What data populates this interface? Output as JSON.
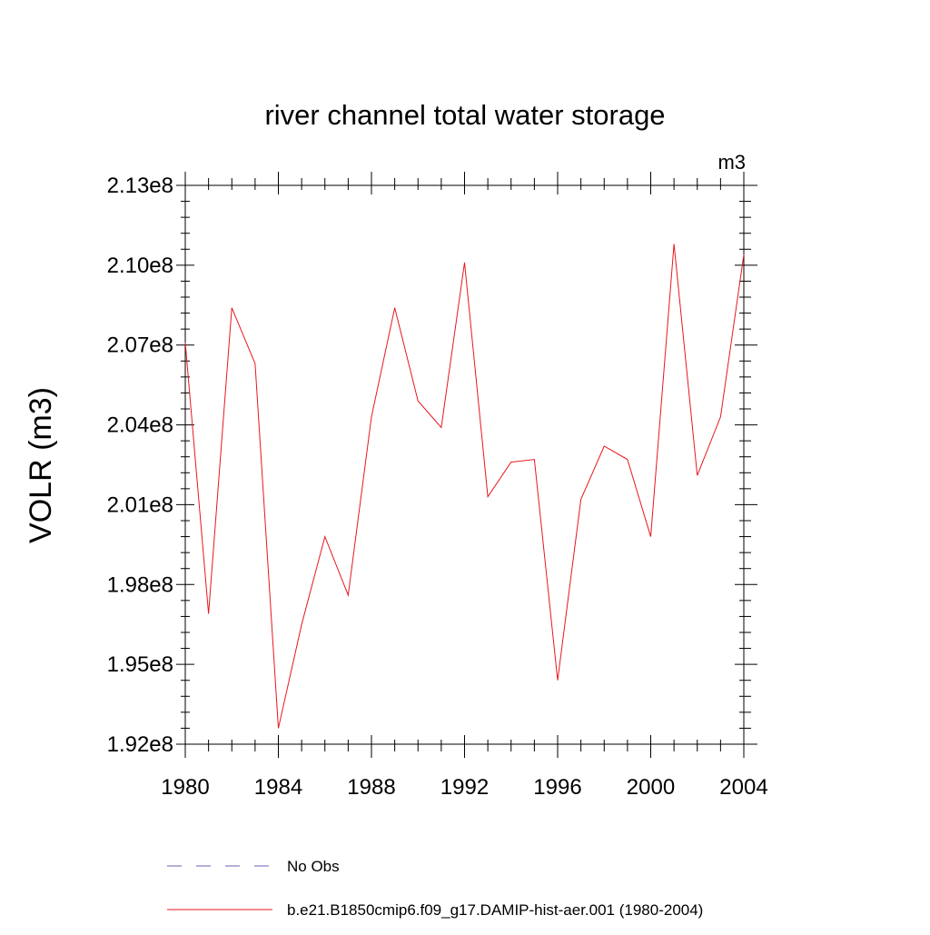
{
  "chart_data": {
    "type": "line",
    "title": "river channel total water storage",
    "units_label": "m3",
    "ylabel": "VOLR  (m3)",
    "xlabel": "",
    "xlim": [
      1980,
      2004
    ],
    "ylim": [
      192000000.0,
      213000000.0
    ],
    "x_ticks": [
      1980,
      1984,
      1988,
      1992,
      1996,
      2000,
      2004
    ],
    "x_tick_labels": [
      "1980",
      "1984",
      "1988",
      "1992",
      "1996",
      "2000",
      "2004"
    ],
    "y_ticks": [
      192000000.0,
      195000000.0,
      198000000.0,
      201000000.0,
      204000000.0,
      207000000.0,
      210000000.0,
      213000000.0
    ],
    "y_tick_labels": [
      "1.92e8",
      "1.95e8",
      "1.98e8",
      "2.01e8",
      "2.04e8",
      "2.07e8",
      "2.10e8",
      "2.13e8"
    ],
    "grid": false,
    "legend_position": "bottom",
    "series": [
      {
        "name": "No Obs",
        "color": "#6b5fb5",
        "dash": "dashed",
        "x": [],
        "values": []
      },
      {
        "name": "b.e21.B1850cmip6.f09_g17.DAMIP-hist-aer.001 (1980-2004)",
        "color": "#e8171d",
        "dash": "solid",
        "x": [
          1980,
          1981,
          1982,
          1983,
          1984,
          1985,
          1986,
          1987,
          1988,
          1989,
          1990,
          1991,
          1992,
          1993,
          1994,
          1995,
          1996,
          1997,
          1998,
          1999,
          2000,
          2001,
          2002,
          2003,
          2004
        ],
        "values": [
          207100000.0,
          196900000.0,
          208400000.0,
          206300000.0,
          192600000.0,
          196500000.0,
          199800000.0,
          197600000.0,
          204300000.0,
          208400000.0,
          204900000.0,
          203900000.0,
          210100000.0,
          201300000.0,
          202600000.0,
          202700000.0,
          194400000.0,
          201200000.0,
          203200000.0,
          202700000.0,
          199800000.0,
          210800000.0,
          202100000.0,
          204300000.0,
          210400000.0
        ]
      }
    ]
  }
}
